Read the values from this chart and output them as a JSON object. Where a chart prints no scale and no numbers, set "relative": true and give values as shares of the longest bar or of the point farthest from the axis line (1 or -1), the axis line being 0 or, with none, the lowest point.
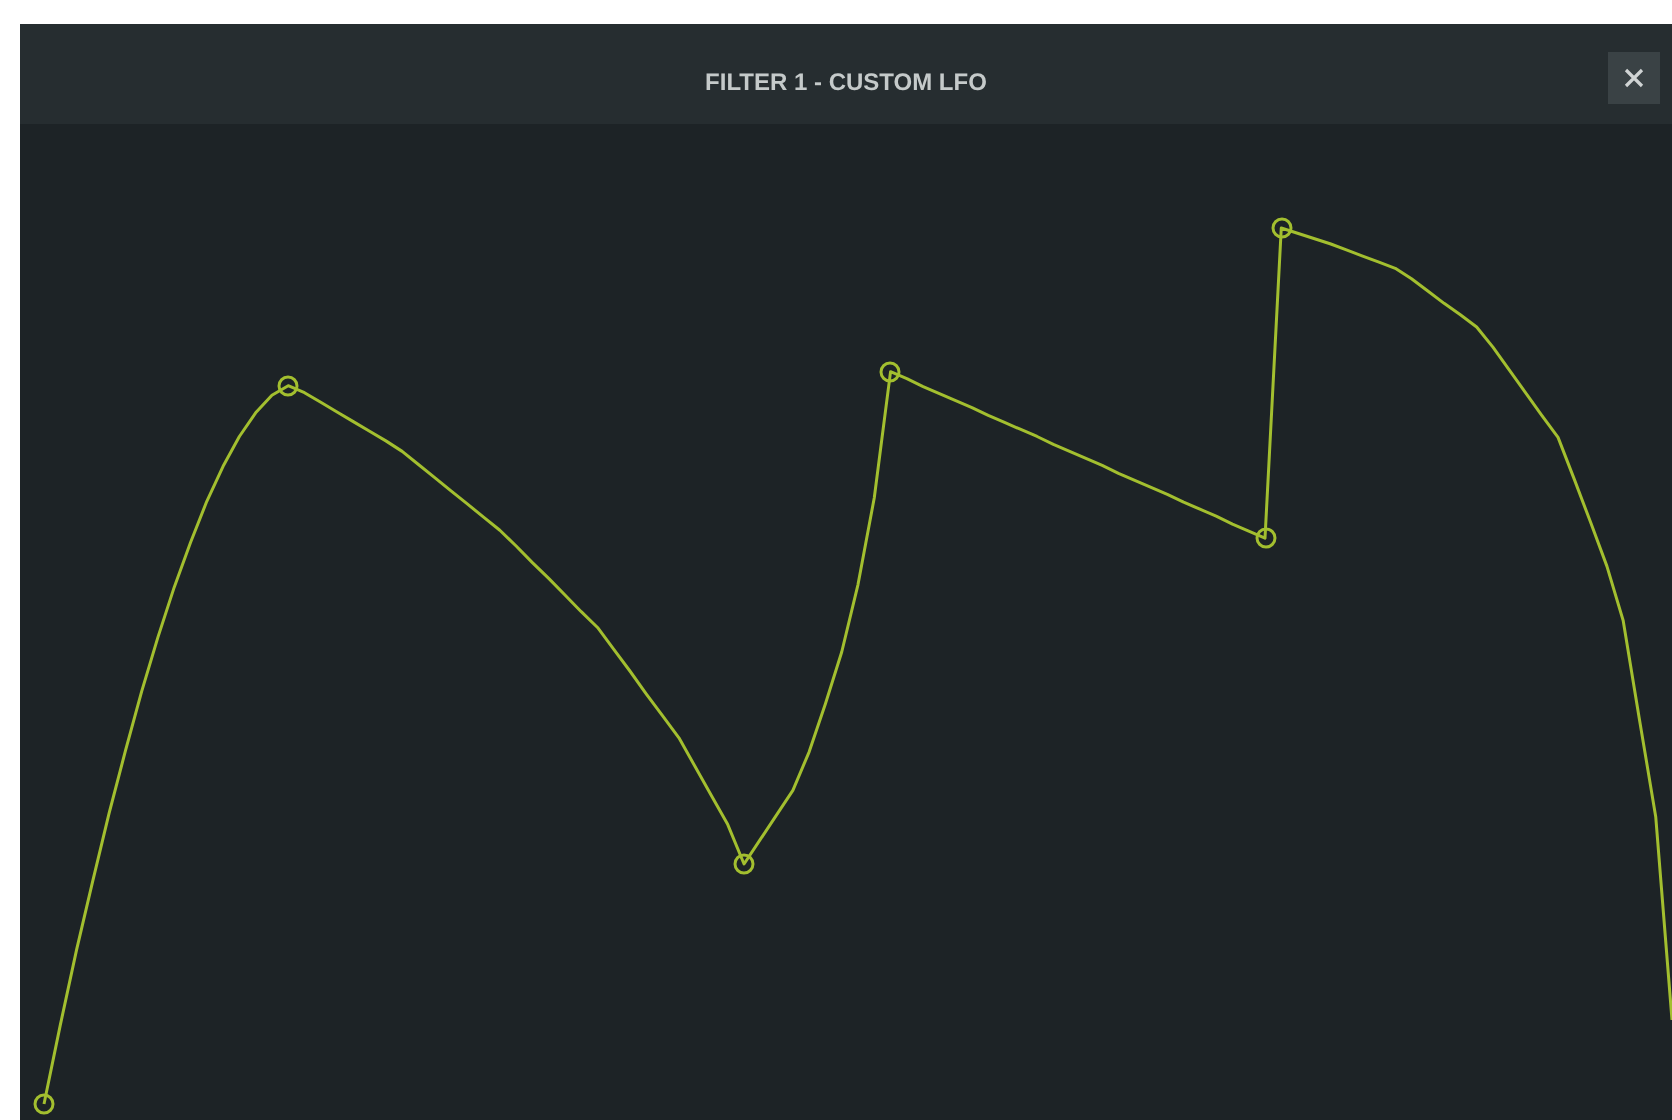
{
  "chart_data": {
    "type": "line",
    "title": "FILTER 1 - CUSTOM LFO",
    "relative": true,
    "categories": [
      null,
      null,
      null,
      null,
      null,
      null,
      null,
      null,
      null,
      null,
      null,
      null,
      null,
      null,
      null,
      null,
      null,
      null,
      null,
      null,
      null,
      null,
      null,
      null,
      null,
      null,
      null,
      null,
      null,
      null,
      null,
      null,
      null,
      null,
      null,
      null,
      null,
      null,
      null,
      null,
      null,
      null,
      null,
      null,
      null,
      null,
      null,
      null,
      null,
      null,
      null,
      null,
      null,
      null,
      null,
      null,
      null,
      null,
      null,
      null,
      null,
      null,
      null,
      null,
      null,
      null,
      null,
      null,
      null,
      null,
      null,
      null,
      null,
      null,
      null,
      null,
      null,
      null,
      null,
      null,
      null,
      null,
      null,
      null,
      null,
      null,
      null,
      null,
      null,
      null,
      null,
      null,
      null,
      null,
      null,
      null,
      null,
      null,
      null,
      null,
      null
    ],
    "series": [
      {
        "color": "#a3bf2f",
        "values": [
          0,
          0.09,
          0.176,
          0.255,
          0.332,
          0.403,
          0.471,
          0.533,
          0.59,
          0.641,
          0.688,
          0.728,
          0.762,
          0.789,
          0.809,
          0.82,
          0.812,
          0.801,
          0.79,
          0.779,
          0.768,
          0.757,
          0.745,
          0.73,
          0.715,
          0.7,
          0.685,
          0.67,
          0.655,
          0.637,
          0.618,
          0.6,
          0.581,
          0.562,
          0.544,
          0.519,
          0.494,
          0.468,
          0.443,
          0.418,
          0.385,
          0.352,
          0.319,
          0.274,
          0.302,
          0.33,
          0.358,
          0.402,
          0.457,
          0.516,
          0.593,
          0.692,
          0.836,
          0.828,
          0.819,
          0.811,
          0.803,
          0.795,
          0.786,
          0.778,
          0.77,
          0.762,
          0.753,
          0.745,
          0.737,
          0.729,
          0.72,
          0.712,
          0.704,
          0.696,
          0.687,
          0.679,
          0.671,
          0.662,
          0.654,
          0.646,
          1.0,
          0.994,
          0.988,
          0.982,
          0.975,
          0.968,
          0.961,
          0.954,
          0.942,
          0.928,
          0.914,
          0.901,
          0.887,
          0.864,
          0.838,
          0.812,
          0.786,
          0.761,
          0.713,
          0.664,
          0.614,
          0.552,
          0.439,
          0.328,
          0.096
        ]
      }
    ]
  }
}
